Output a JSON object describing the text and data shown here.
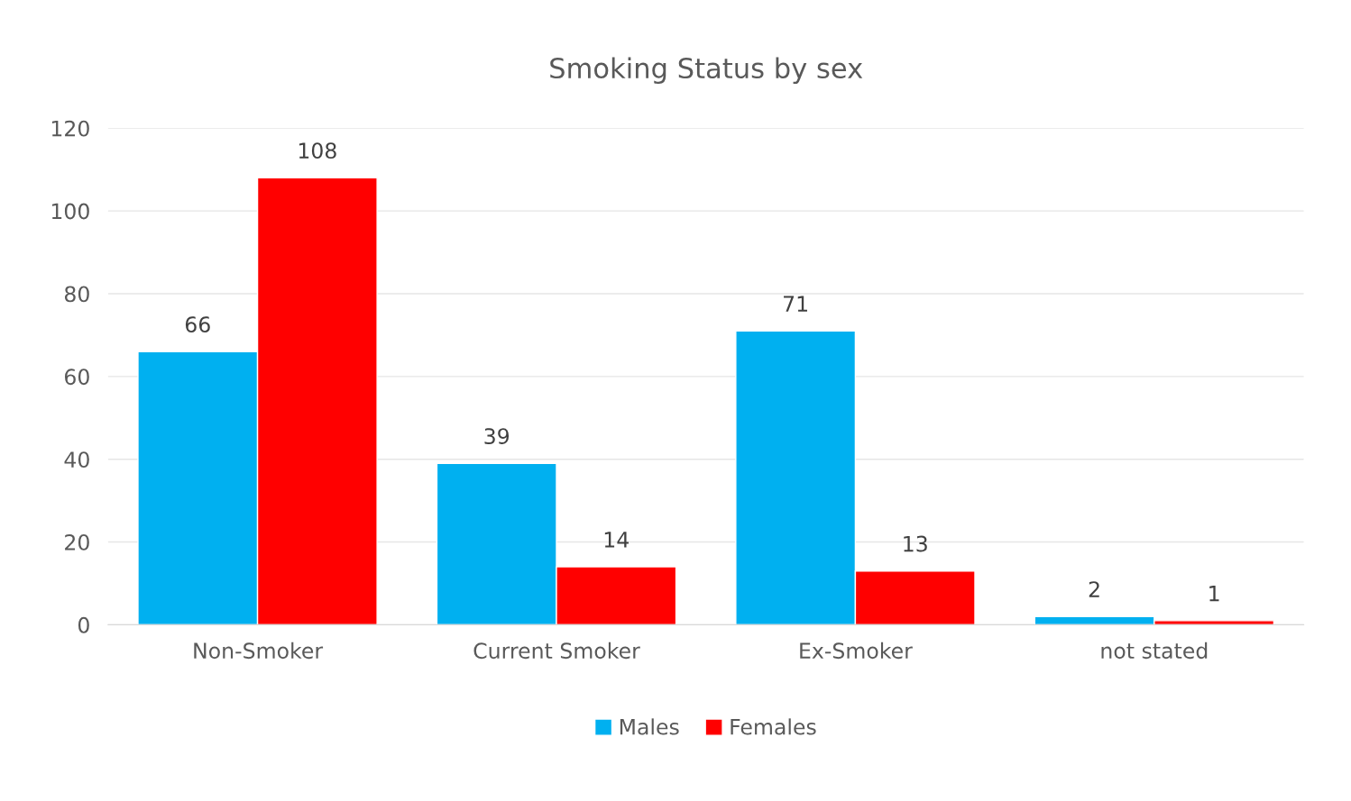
{
  "chart_data": {
    "type": "bar",
    "title": "Smoking Status by sex",
    "categories": [
      "Non-Smoker",
      "Current Smoker",
      "Ex-Smoker",
      "not stated"
    ],
    "series": [
      {
        "name": "Males",
        "color": "#00b0f0",
        "values": [
          66,
          39,
          71,
          2
        ]
      },
      {
        "name": "Females",
        "color": "#ff0000",
        "values": [
          108,
          14,
          13,
          1
        ]
      }
    ],
    "ylim": [
      0,
      120
    ],
    "yticks": [
      0,
      20,
      40,
      60,
      80,
      100,
      120
    ],
    "grid": "y",
    "legend": "bottom",
    "data_labels": true
  }
}
